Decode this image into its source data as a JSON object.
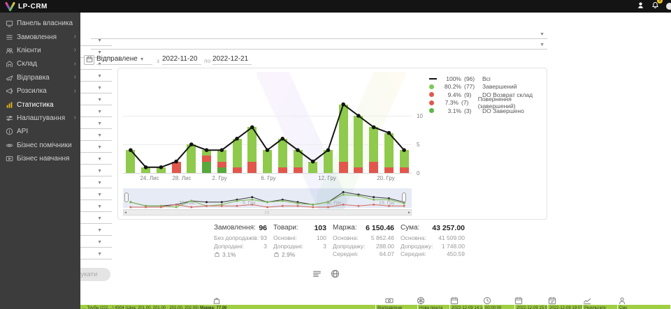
{
  "topbar": {
    "brand": "LP-CRM",
    "notification_badge": "1"
  },
  "sidebar": {
    "items": [
      {
        "key": "owner-panel",
        "label": "Панель власника",
        "icon": "dashboard-icon",
        "chevron": false,
        "active": false
      },
      {
        "key": "orders",
        "label": "Замовлення",
        "icon": "orders-icon",
        "chevron": true,
        "active": false
      },
      {
        "key": "clients",
        "label": "Клієнти",
        "icon": "clients-icon",
        "chevron": true,
        "active": false
      },
      {
        "key": "warehouse",
        "label": "Склад",
        "icon": "warehouse-icon",
        "chevron": true,
        "active": false
      },
      {
        "key": "shipping",
        "label": "Відправка",
        "icon": "shipping-icon",
        "chevron": true,
        "active": false
      },
      {
        "key": "mailing",
        "label": "Розсилка",
        "icon": "mailing-icon",
        "chevron": true,
        "active": false
      },
      {
        "key": "statistics",
        "label": "Статистика",
        "icon": "statistics-icon",
        "chevron": false,
        "active": true
      },
      {
        "key": "settings",
        "label": "Налаштування",
        "icon": "settings-icon",
        "chevron": true,
        "active": false
      },
      {
        "key": "api",
        "label": "API",
        "icon": "api-icon",
        "chevron": false,
        "active": false
      },
      {
        "key": "assistants",
        "label": "Бізнес помічники",
        "icon": "assistants-icon",
        "chevron": false,
        "active": false
      },
      {
        "key": "training",
        "label": "Бізнес навчання",
        "icon": "training-icon",
        "chevron": false,
        "active": false
      }
    ]
  },
  "toolbar": {
    "top_selects": [
      {
        "value": ""
      },
      {
        "value": ""
      }
    ],
    "left_filter_rows": 19,
    "status_filter": {
      "label": "Відправлене"
    },
    "from_label": "з",
    "date_from": "2022-11-20",
    "to_label": "по",
    "date_to": "2022-12-21",
    "search_button": "Шукати"
  },
  "chart_data": {
    "type": "bar",
    "title": "",
    "categories_count": 19,
    "yticks": [
      0,
      5,
      10
    ],
    "x_tick_labels": [
      "24. Лис",
      "28. Лис",
      "2. Гру",
      "6. Гру",
      "12. Гру",
      "20. Гру"
    ],
    "series": [
      {
        "name": "Всі",
        "type": "line",
        "color": "#141414",
        "values": [
          4,
          1,
          1,
          2,
          5,
          4,
          4,
          6,
          8,
          4,
          6,
          4,
          2,
          4,
          12,
          10,
          8,
          7,
          4
        ]
      },
      {
        "name": "Завершений",
        "type": "bar",
        "color": "#8fca4c",
        "values": [
          4,
          1,
          1,
          0,
          5,
          1,
          2,
          5,
          6,
          4,
          5,
          3,
          2,
          4,
          10,
          9,
          6,
          6,
          3
        ]
      },
      {
        "name": "Повернення / DO Возврат склад",
        "type": "bar",
        "color": "#e2574c",
        "values": [
          0,
          0,
          0,
          2,
          0,
          1,
          1,
          1,
          2,
          0,
          1,
          1,
          0,
          0,
          2,
          1,
          2,
          1,
          1
        ]
      },
      {
        "name": "DO Завершено",
        "type": "bar",
        "color": "#58a83c",
        "values": [
          0,
          0,
          0,
          0,
          0,
          2,
          1,
          0,
          0,
          0,
          0,
          0,
          0,
          0,
          0,
          0,
          0,
          0,
          0
        ]
      }
    ],
    "stack_order_bottom_to_top": [
      "DO Завершено",
      "Повернення / DO Возврат склад",
      "Завершений"
    ],
    "legend_position": "top-right",
    "legend": [
      {
        "swatch": "line",
        "color": "#141414",
        "pct": "100%",
        "count": "(96)",
        "label": "Всі"
      },
      {
        "swatch": "dot",
        "color": "#7dc855",
        "pct": "80.2%",
        "count": "(77)",
        "label": "Завершений"
      },
      {
        "swatch": "dot",
        "color": "#e2574c",
        "pct": "9.4%",
        "count": "(9)",
        "label": "DO Возврат склад"
      },
      {
        "swatch": "dot",
        "color": "#e2574c",
        "pct": "7.3%",
        "count": "(7)",
        "label": "Повернення (завершений)"
      },
      {
        "swatch": "dot",
        "color": "#5cb648",
        "pct": "3.1%",
        "count": "(3)",
        "label": "DO Завершено"
      }
    ],
    "navigator_labels": [
      "28. Лис",
      "5. Гру",
      "12. Гру",
      "19. Гру"
    ]
  },
  "summary": {
    "columns": [
      {
        "title": "Замовлення:",
        "value": "96",
        "rows": [
          [
            "Без допродажів:",
            "93"
          ],
          [
            "Допродані:",
            "3"
          ]
        ],
        "upsell": "3.1%"
      },
      {
        "title": "Товари:",
        "value": "103",
        "rows": [
          [
            "Основні:",
            "100"
          ],
          [
            "Допродані:",
            "3"
          ]
        ],
        "upsell": "2.9%"
      },
      {
        "title": "Маржа:",
        "value": "6 150.46",
        "rows": [
          [
            "Основна:",
            "5 862.46"
          ],
          [
            "Допродажу:",
            "288.00"
          ],
          [
            "Середня:",
            "64.07"
          ]
        ]
      },
      {
        "title": "Сума:",
        "value": "43 257.00",
        "rows": [
          [
            "Основна:",
            "41 509.00"
          ],
          [
            "Допродажу:",
            "1 748.00"
          ],
          [
            "Середня:",
            "450.59"
          ]
        ]
      }
    ]
  },
  "view_toggles": [
    {
      "name": "table-view-icon"
    },
    {
      "name": "globe-view-icon"
    }
  ],
  "table": {
    "header_icons": [
      {
        "name": "bag-icon"
      },
      {
        "name": "banknote-icon"
      },
      {
        "name": "gift-icon"
      },
      {
        "name": "calendar-icon"
      },
      {
        "name": "clock-icon"
      },
      {
        "name": "calendar-icon"
      },
      {
        "name": "calendar-check-icon"
      },
      {
        "name": "chart-icon"
      },
      {
        "name": "person-icon"
      }
    ],
    "row": {
      "product_info": "… Труба (222…) 4504 (Ціна: 201.00, 201.00 · 202.00, 202.05)",
      "margin": "Маржа: 77.00",
      "cells": [
        "Відправлене",
        "Нова пошта",
        "2022-12-09 14:14:06",
        "00:00:00",
        "2022-12-09 15:00:30",
        "2022-12-09 19:07:05",
        "Результати",
        "Смс"
      ]
    }
  }
}
